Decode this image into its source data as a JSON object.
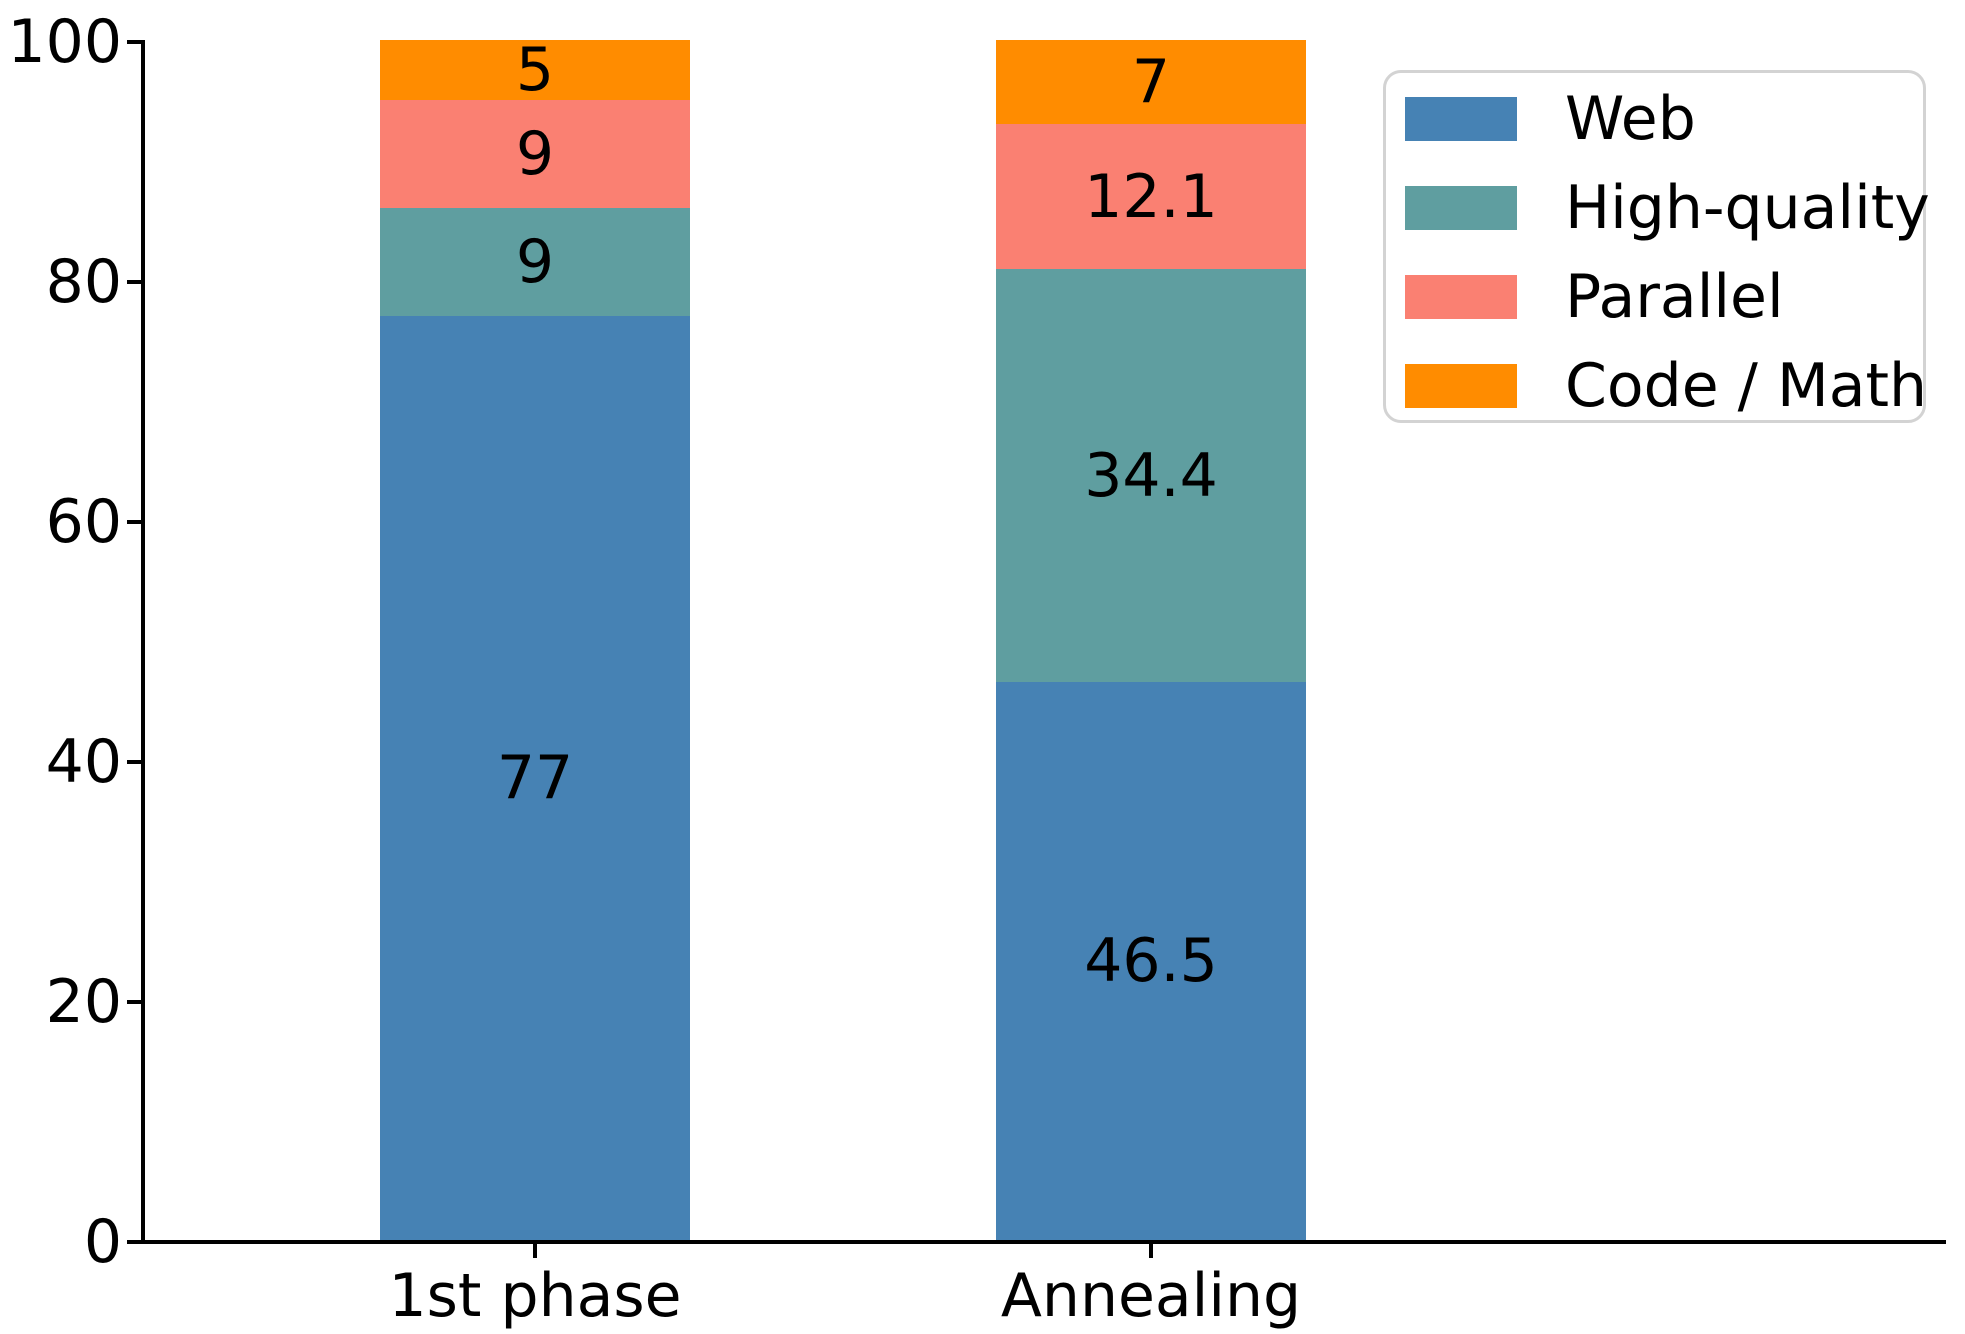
{
  "chart_data": {
    "type": "bar",
    "stacked": true,
    "title": "",
    "xlabel": "",
    "ylabel": "",
    "categories": [
      "1st phase",
      "Annealing"
    ],
    "series": [
      {
        "name": "Web",
        "color": "#4682B4",
        "values": [
          77,
          46.5
        ]
      },
      {
        "name": "High-quality",
        "color": "#5F9EA0",
        "values": [
          9,
          34.4
        ]
      },
      {
        "name": "Parallel",
        "color": "#FA8072",
        "values": [
          9,
          12.1
        ]
      },
      {
        "name": "Code / Math",
        "color": "#FF8C00",
        "values": [
          5,
          7
        ]
      }
    ],
    "segment_labels": [
      [
        "77",
        "9",
        "9",
        "5"
      ],
      [
        "46.5",
        "34.4",
        "12.1",
        "7"
      ]
    ],
    "ylim": [
      0,
      100
    ],
    "yticks": [
      0,
      20,
      40,
      60,
      80,
      100
    ],
    "ytick_labels": [
      "0",
      "20",
      "40",
      "60",
      "80",
      "100"
    ],
    "grid": false,
    "legend_position": "upper right",
    "legend_entries": [
      "Web",
      "High-quality",
      "Parallel",
      "Code / Math"
    ],
    "axis_color": "#000000",
    "label_color": "#000000",
    "legend_border_color": "#d3d3d3"
  }
}
